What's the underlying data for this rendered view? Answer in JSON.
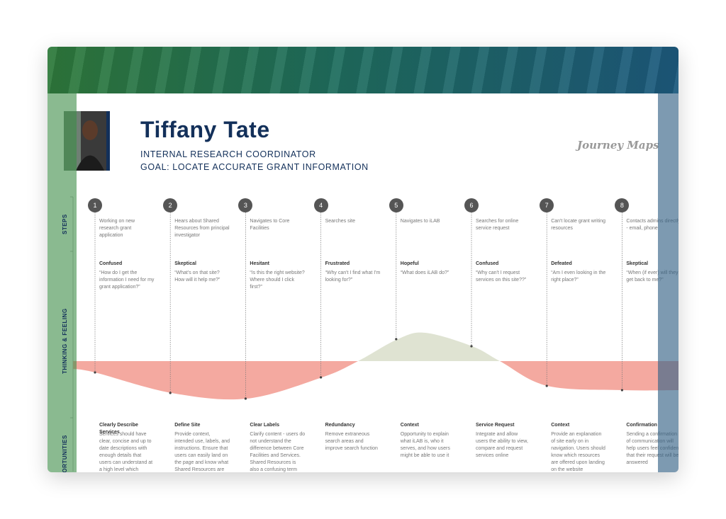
{
  "persona": {
    "name": "Tiffany Tate",
    "role": "INTERNAL RESEARCH COORDINATOR",
    "goal": "GOAL: LOCATE ACCURATE GRANT INFORMATION"
  },
  "brand": "Journey Maps",
  "sections": {
    "steps": "STEPS",
    "thinking": "THINKING & FEELING",
    "opportunities": "OPPORTUNITIES"
  },
  "steps": [
    {
      "number": "1",
      "action": "Working on new research grant application",
      "feeling": "Confused",
      "quote": "“How do I get the information I need for my grant application?”",
      "opportunity": "Clearly Describe Services",
      "detail": "Services should have clear, concise and up to date descriptions with enough details that users can understand at a high level which services and"
    },
    {
      "number": "2",
      "action": "Hears about Shared Resources from principal investigator",
      "feeling": "Skeptical",
      "quote": "“What's on that site? How will it help me?”",
      "opportunity": "Define Site",
      "detail": "Provide context, intended use, labels, and instructions. Ensure that users can easily land on the page and know what Shared Resources are"
    },
    {
      "number": "3",
      "action": "Navigates to Core Facilities",
      "feeling": "Hesitant",
      "quote": "“Is this the right website? Where should I click first?”",
      "opportunity": "Clear Labels",
      "detail": "Clarify content - users do not understand the difference between Core Facilities and Services. Shared Resources is also a confusing term that"
    },
    {
      "number": "4",
      "action": "Searches site",
      "feeling": "Frustrated",
      "quote": "“Why can't I find what I'm looking for?”",
      "opportunity": "Redundancy",
      "detail": "Remove extraneous search areas and improve search function"
    },
    {
      "number": "5",
      "action": "Navigates to iLAB",
      "feeling": "Hopeful",
      "quote": "“What does iLAB do?”",
      "opportunity": "Context",
      "detail": "Opportunity to explain what iLAB is, who it serves, and how users might be able to use it"
    },
    {
      "number": "6",
      "action": "Searches for online service request",
      "feeling": "Confused",
      "quote": "“Why can't I request services on this site??”",
      "opportunity": "Service Request",
      "detail": "Integrate and allow users the ability to view, compare and request services online"
    },
    {
      "number": "7",
      "action": "Can't locate grant writing resources",
      "feeling": "Defeated",
      "quote": "“Am I even looking in the right place?”",
      "opportunity": "Context",
      "detail": "Provide an explanation of site early on in navigation. Users should know which resources are offered upon landing on the website"
    },
    {
      "number": "8",
      "action": "Contacts admins directly - email, phone",
      "feeling": "Skeptical",
      "quote": "“When (if ever) will they get back to me?”",
      "opportunity": "Confirmation",
      "detail": "Sending a confirmation of communication will help users feel confident that their request will be answered"
    }
  ]
}
